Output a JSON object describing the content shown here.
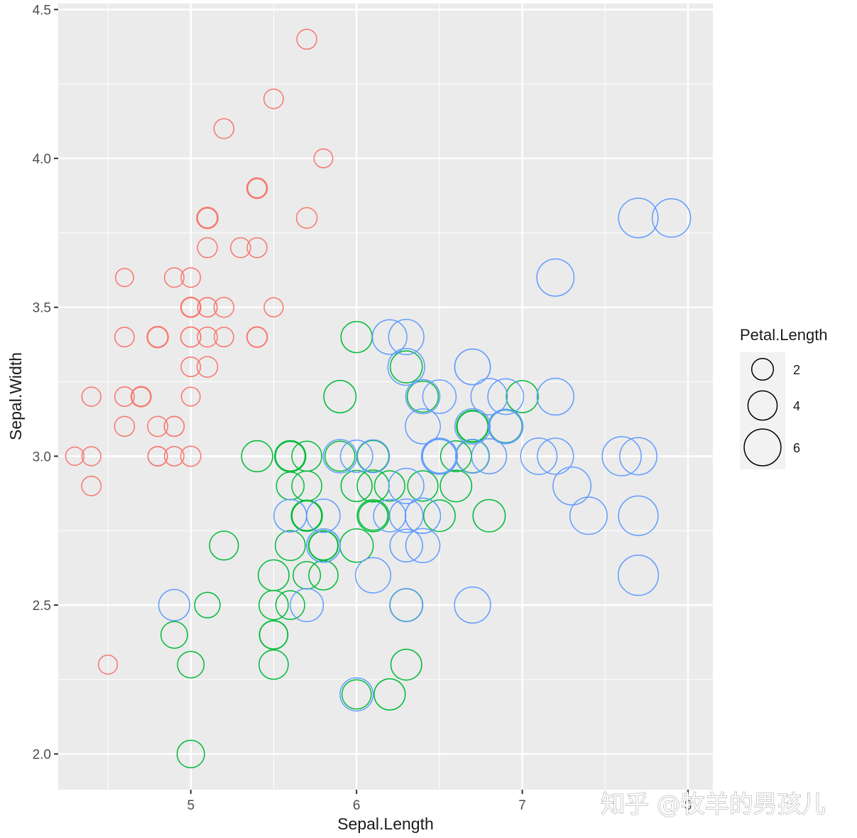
{
  "chart_data": {
    "type": "scatter",
    "xlabel": "Sepal.Length",
    "ylabel": "Sepal.Width",
    "xlim": [
      4.2,
      8.15
    ],
    "ylim": [
      1.88,
      4.52
    ],
    "x_ticks": [
      5,
      6,
      7,
      8
    ],
    "x_tick_labels": [
      "5",
      "6",
      "7",
      "8"
    ],
    "y_ticks": [
      2.0,
      2.5,
      3.0,
      3.5,
      4.0,
      4.5
    ],
    "y_tick_labels": [
      "2.0",
      "2.5",
      "3.0",
      "3.5",
      "4.0",
      "4.5"
    ],
    "grid": true,
    "legend": {
      "title": "Petal.Length",
      "placement": "right",
      "entries": [
        {
          "label": "2",
          "value": 2
        },
        {
          "label": "4",
          "value": 4
        },
        {
          "label": "6",
          "value": 6
        }
      ]
    },
    "size_variable": "Petal.Length",
    "series": [
      {
        "color": "#F8766D",
        "points": [
          [
            5.1,
            3.5,
            1.4
          ],
          [
            4.9,
            3.0,
            1.4
          ],
          [
            4.7,
            3.2,
            1.3
          ],
          [
            4.6,
            3.1,
            1.5
          ],
          [
            5.0,
            3.6,
            1.4
          ],
          [
            5.4,
            3.9,
            1.7
          ],
          [
            4.6,
            3.4,
            1.4
          ],
          [
            5.0,
            3.4,
            1.5
          ],
          [
            4.4,
            2.9,
            1.4
          ],
          [
            4.9,
            3.1,
            1.5
          ],
          [
            5.4,
            3.7,
            1.5
          ],
          [
            4.8,
            3.4,
            1.6
          ],
          [
            4.8,
            3.0,
            1.4
          ],
          [
            4.3,
            3.0,
            1.1
          ],
          [
            5.8,
            4.0,
            1.2
          ],
          [
            5.7,
            4.4,
            1.5
          ],
          [
            5.4,
            3.9,
            1.3
          ],
          [
            5.1,
            3.5,
            1.4
          ],
          [
            5.7,
            3.8,
            1.7
          ],
          [
            5.1,
            3.8,
            1.5
          ],
          [
            5.4,
            3.4,
            1.7
          ],
          [
            5.1,
            3.7,
            1.5
          ],
          [
            4.6,
            3.6,
            1.0
          ],
          [
            5.1,
            3.3,
            1.7
          ],
          [
            4.8,
            3.4,
            1.9
          ],
          [
            5.0,
            3.0,
            1.6
          ],
          [
            5.0,
            3.4,
            1.6
          ],
          [
            5.2,
            3.5,
            1.5
          ],
          [
            5.2,
            3.4,
            1.4
          ],
          [
            4.7,
            3.2,
            1.6
          ],
          [
            4.8,
            3.1,
            1.6
          ],
          [
            5.4,
            3.4,
            1.5
          ],
          [
            5.2,
            4.1,
            1.5
          ],
          [
            5.5,
            4.2,
            1.4
          ],
          [
            4.9,
            3.1,
            1.5
          ],
          [
            5.0,
            3.2,
            1.2
          ],
          [
            5.5,
            3.5,
            1.3
          ],
          [
            4.9,
            3.6,
            1.4
          ],
          [
            4.4,
            3.0,
            1.3
          ],
          [
            5.1,
            3.4,
            1.5
          ],
          [
            5.0,
            3.5,
            1.3
          ],
          [
            4.5,
            2.3,
            1.3
          ],
          [
            4.4,
            3.2,
            1.3
          ],
          [
            5.0,
            3.5,
            1.6
          ],
          [
            5.1,
            3.8,
            1.9
          ],
          [
            4.8,
            3.0,
            1.4
          ],
          [
            5.1,
            3.8,
            1.6
          ],
          [
            4.6,
            3.2,
            1.4
          ],
          [
            5.3,
            3.7,
            1.5
          ],
          [
            5.0,
            3.3,
            1.4
          ]
        ]
      },
      {
        "color": "#00BA38",
        "points": [
          [
            7.0,
            3.2,
            4.7
          ],
          [
            6.4,
            3.2,
            4.5
          ],
          [
            6.9,
            3.1,
            4.9
          ],
          [
            5.5,
            2.3,
            4.0
          ],
          [
            6.5,
            2.8,
            4.6
          ],
          [
            5.7,
            2.8,
            4.5
          ],
          [
            6.3,
            3.3,
            4.7
          ],
          [
            4.9,
            2.4,
            3.3
          ],
          [
            6.6,
            2.9,
            4.6
          ],
          [
            5.2,
            2.7,
            3.9
          ],
          [
            5.0,
            2.0,
            3.5
          ],
          [
            5.9,
            3.0,
            4.2
          ],
          [
            6.0,
            2.2,
            4.0
          ],
          [
            6.1,
            2.9,
            4.7
          ],
          [
            5.6,
            2.9,
            3.6
          ],
          [
            6.7,
            3.1,
            4.4
          ],
          [
            5.6,
            3.0,
            4.5
          ],
          [
            5.8,
            2.7,
            4.1
          ],
          [
            6.2,
            2.2,
            4.5
          ],
          [
            5.6,
            2.5,
            3.9
          ],
          [
            5.9,
            3.2,
            4.8
          ],
          [
            6.1,
            2.8,
            4.0
          ],
          [
            6.3,
            2.5,
            4.9
          ],
          [
            6.1,
            2.8,
            4.7
          ],
          [
            6.4,
            2.9,
            4.3
          ],
          [
            6.6,
            3.0,
            4.4
          ],
          [
            6.8,
            2.8,
            4.8
          ],
          [
            6.7,
            3.0,
            5.0
          ],
          [
            6.0,
            2.9,
            4.5
          ],
          [
            5.7,
            2.6,
            3.5
          ],
          [
            5.5,
            2.4,
            3.8
          ],
          [
            5.5,
            2.4,
            3.7
          ],
          [
            5.8,
            2.7,
            3.9
          ],
          [
            6.0,
            2.7,
            5.1
          ],
          [
            5.4,
            3.0,
            4.5
          ],
          [
            6.0,
            3.4,
            4.5
          ],
          [
            6.7,
            3.1,
            4.7
          ],
          [
            6.3,
            2.3,
            4.4
          ],
          [
            5.6,
            3.0,
            4.1
          ],
          [
            5.5,
            2.5,
            4.0
          ],
          [
            5.5,
            2.6,
            4.4
          ],
          [
            6.1,
            3.0,
            4.6
          ],
          [
            5.8,
            2.6,
            4.0
          ],
          [
            5.0,
            2.3,
            3.3
          ],
          [
            5.6,
            2.7,
            4.2
          ],
          [
            5.7,
            3.0,
            4.2
          ],
          [
            5.7,
            2.9,
            4.2
          ],
          [
            6.2,
            2.9,
            4.3
          ],
          [
            5.1,
            2.5,
            3.0
          ],
          [
            5.7,
            2.8,
            4.1
          ]
        ]
      },
      {
        "color": "#619CFF",
        "points": [
          [
            6.3,
            3.3,
            6.0
          ],
          [
            5.8,
            2.7,
            5.1
          ],
          [
            7.1,
            3.0,
            5.9
          ],
          [
            6.3,
            2.9,
            5.6
          ],
          [
            6.5,
            3.0,
            5.8
          ],
          [
            7.6,
            3.0,
            6.6
          ],
          [
            4.9,
            2.5,
            4.5
          ],
          [
            7.3,
            2.9,
            6.3
          ],
          [
            6.7,
            2.5,
            5.8
          ],
          [
            7.2,
            3.6,
            6.1
          ],
          [
            6.5,
            3.2,
            5.1
          ],
          [
            6.4,
            2.7,
            5.3
          ],
          [
            6.8,
            3.0,
            5.5
          ],
          [
            5.7,
            2.5,
            5.0
          ],
          [
            5.8,
            2.8,
            5.1
          ],
          [
            6.4,
            3.2,
            5.3
          ],
          [
            6.5,
            3.0,
            5.5
          ],
          [
            7.7,
            3.8,
            6.7
          ],
          [
            7.7,
            2.6,
            6.9
          ],
          [
            6.0,
            2.2,
            5.0
          ],
          [
            6.9,
            3.2,
            5.7
          ],
          [
            5.6,
            2.8,
            4.9
          ],
          [
            7.7,
            2.8,
            6.7
          ],
          [
            6.3,
            2.7,
            4.9
          ],
          [
            6.7,
            3.3,
            5.7
          ],
          [
            7.2,
            3.2,
            6.0
          ],
          [
            6.2,
            2.8,
            4.8
          ],
          [
            6.1,
            3.0,
            4.9
          ],
          [
            6.4,
            2.8,
            5.6
          ],
          [
            7.2,
            3.0,
            5.8
          ],
          [
            7.4,
            2.8,
            6.1
          ],
          [
            7.9,
            3.8,
            6.4
          ],
          [
            6.4,
            2.8,
            5.6
          ],
          [
            6.3,
            2.8,
            5.1
          ],
          [
            6.1,
            2.6,
            5.6
          ],
          [
            7.7,
            3.0,
            6.1
          ],
          [
            6.3,
            3.4,
            5.6
          ],
          [
            6.4,
            3.1,
            5.5
          ],
          [
            6.0,
            3.0,
            4.8
          ],
          [
            6.9,
            3.1,
            5.4
          ],
          [
            6.7,
            3.1,
            5.6
          ],
          [
            6.9,
            3.1,
            5.1
          ],
          [
            5.8,
            2.7,
            5.1
          ],
          [
            6.8,
            3.2,
            5.9
          ],
          [
            6.7,
            3.3,
            5.7
          ],
          [
            6.7,
            3.0,
            5.2
          ],
          [
            6.3,
            2.5,
            5.0
          ],
          [
            6.5,
            3.0,
            5.2
          ],
          [
            6.2,
            3.4,
            5.4
          ],
          [
            5.9,
            3.0,
            5.1
          ]
        ]
      }
    ]
  },
  "watermark": {
    "text": "知乎 @牧羊的男孩儿"
  }
}
